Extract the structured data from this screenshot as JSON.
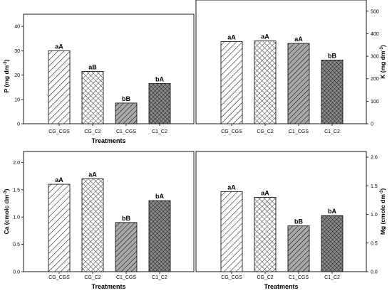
{
  "chart_data": [
    {
      "type": "bar",
      "panel": "top-left",
      "ylabel": "P (mg dm",
      "ylabel_sup": "-3",
      "ylabel_end": ")",
      "ylabel_side": "left",
      "xlabel": "Treatments",
      "categories": [
        "CG_CGS",
        "CG_C2",
        "C1_CGS",
        "C1_C2"
      ],
      "values": [
        30,
        21.5,
        8.5,
        16.5
      ],
      "labels": [
        "aA",
        "aB",
        "bB",
        "bA"
      ],
      "ylim": [
        0,
        45
      ],
      "yticks": [
        0,
        10,
        20,
        30,
        40
      ],
      "patterns": [
        "diag",
        "cross",
        "diag-gray",
        "cross-gray"
      ]
    },
    {
      "type": "bar",
      "panel": "top-right",
      "ylabel": "K (mg dm",
      "ylabel_sup": "-3",
      "ylabel_end": ")",
      "ylabel_side": "right",
      "xlabel": "",
      "categories": [
        "CG_CGS",
        "CG_C2",
        "C1_CGS",
        "C1_C2"
      ],
      "values": [
        365,
        368,
        357,
        283
      ],
      "labels": [
        "aA",
        "aA",
        "aA",
        "bB"
      ],
      "ylim": [
        0,
        550
      ],
      "yticks": [
        0,
        100,
        200,
        300,
        400,
        500
      ],
      "patterns": [
        "diag",
        "cross",
        "diag-gray",
        "cross-gray"
      ]
    },
    {
      "type": "bar",
      "panel": "bottom-left",
      "ylabel": "Ca (cmolc dm",
      "ylabel_sup": "-3",
      "ylabel_end": ")",
      "ylabel_side": "left",
      "xlabel": "Treatments",
      "categories": [
        "CG_CGS",
        "CG_C2",
        "C1_CGS",
        "C1_C2"
      ],
      "values": [
        1.6,
        1.7,
        0.9,
        1.3
      ],
      "labels": [
        "aA",
        "aA",
        "bB",
        "bA"
      ],
      "ylim": [
        0,
        2.2
      ],
      "yticks": [
        "0.0",
        "0.5",
        "1.0",
        "1.5",
        "2.0"
      ],
      "patterns": [
        "diag",
        "cross",
        "diag-gray",
        "cross-gray"
      ]
    },
    {
      "type": "bar",
      "panel": "bottom-right",
      "ylabel": "Mg (cmolc dm",
      "ylabel_sup": "-3",
      "ylabel_end": ")",
      "ylabel_side": "right",
      "xlabel": "Treatments",
      "categories": [
        "CG_CGS",
        "CG_C2",
        "C1_CGS",
        "C1_C2"
      ],
      "values": [
        1.4,
        1.3,
        0.8,
        0.98
      ],
      "labels": [
        "aA",
        "aA",
        "bB",
        "bA"
      ],
      "ylim": [
        0,
        2.1
      ],
      "yticks": [
        "0.0",
        "0.5",
        "1.0",
        "1.5",
        "2.0"
      ],
      "patterns": [
        "diag",
        "cross",
        "diag-gray",
        "cross-gray"
      ]
    }
  ]
}
